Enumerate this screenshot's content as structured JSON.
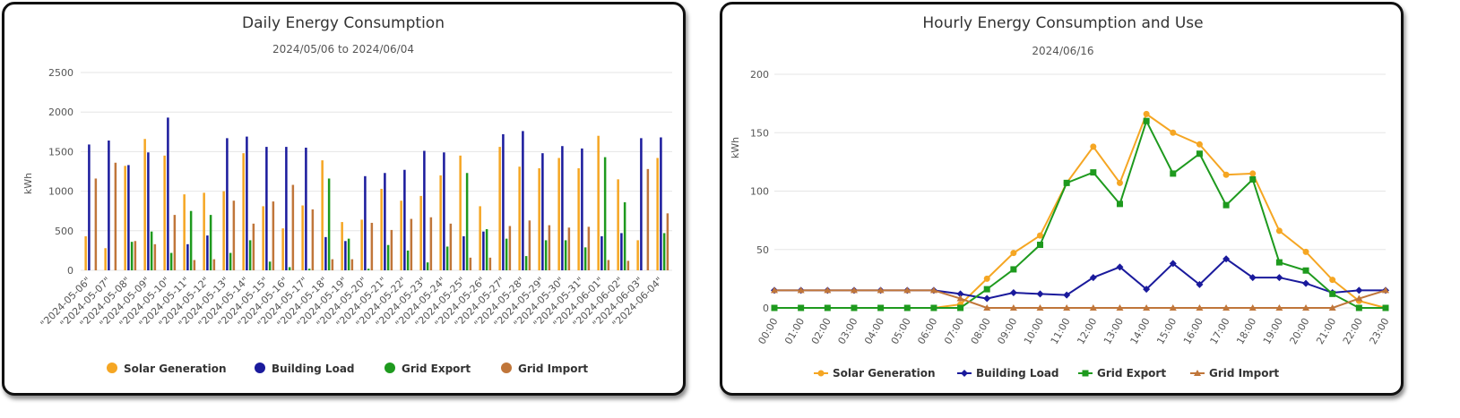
{
  "chart_data": [
    {
      "type": "bar",
      "title": "Daily Energy Consumption",
      "subtitle": "2024/05/06 to 2024/06/04",
      "xlabel": "",
      "ylabel": "kWh",
      "ylim": [
        0,
        2500
      ],
      "yticks": [
        0,
        500,
        1000,
        1500,
        2000,
        2500
      ],
      "grid": true,
      "legend": "bottom",
      "categories": [
        "\"2024-05-06\"",
        "\"2024-05-07\"",
        "\"2024-05-08\"",
        "\"2024-05-09\"",
        "\"2024-05-10\"",
        "\"2024-05-11\"",
        "\"2024-05-12\"",
        "\"2024-05-13\"",
        "\"2024-05-14\"",
        "\"2024-05-15\"",
        "\"2024-05-16\"",
        "\"2024-05-17\"",
        "\"2024-05-18\"",
        "\"2024-05-19\"",
        "\"2024-05-20\"",
        "\"2024-05-21\"",
        "\"2024-05-22\"",
        "\"2024-05-23\"",
        "\"2024-05-24\"",
        "\"2024-05-25\"",
        "\"2024-05-26\"",
        "\"2024-05-27\"",
        "\"2024-05-28\"",
        "\"2024-05-29\"",
        "\"2024-05-30\"",
        "\"2024-05-31\"",
        "\"2024-06-01\"",
        "\"2024-06-02\"",
        "\"2024-06-03\"",
        "\"2024-06-04\""
      ],
      "series": [
        {
          "name": "Solar Generation",
          "color": "#f5a623",
          "values": [
            430,
            280,
            1320,
            1660,
            1450,
            960,
            980,
            1000,
            1480,
            810,
            530,
            820,
            1390,
            610,
            640,
            1030,
            880,
            940,
            1200,
            1450,
            810,
            1560,
            1310,
            1290,
            1420,
            1290,
            1700,
            1150,
            380,
            1420
          ]
        },
        {
          "name": "Building Load",
          "color": "#1a1a9c",
          "values": [
            1590,
            1640,
            1330,
            1490,
            1930,
            330,
            440,
            1670,
            1690,
            1560,
            1560,
            1550,
            420,
            370,
            1190,
            1230,
            1270,
            1510,
            1490,
            430,
            490,
            1720,
            1760,
            1480,
            1570,
            1540,
            430,
            470,
            1670,
            1680
          ]
        },
        {
          "name": "Grid Export",
          "color": "#1e9a1e",
          "values": [
            0,
            0,
            360,
            490,
            220,
            750,
            700,
            220,
            380,
            110,
            40,
            20,
            1160,
            400,
            20,
            320,
            250,
            100,
            300,
            1230,
            520,
            400,
            180,
            380,
            380,
            290,
            1430,
            860,
            0,
            470
          ]
        },
        {
          "name": "Grid Import",
          "color": "#c0763a",
          "values": [
            1160,
            1360,
            370,
            330,
            700,
            130,
            140,
            880,
            590,
            870,
            1080,
            770,
            140,
            140,
            600,
            510,
            650,
            670,
            590,
            160,
            160,
            560,
            630,
            570,
            540,
            550,
            130,
            120,
            1280,
            720
          ]
        }
      ]
    },
    {
      "type": "line",
      "title": "Hourly Energy Consumption and Use",
      "subtitle": "2024/06/16",
      "xlabel": "",
      "ylabel": "kWh",
      "ylim": [
        0,
        200
      ],
      "yticks": [
        0,
        50,
        100,
        150,
        200
      ],
      "grid": true,
      "legend": "bottom",
      "x": [
        "00:00",
        "01:00",
        "02:00",
        "03:00",
        "04:00",
        "05:00",
        "06:00",
        "07:00",
        "08:00",
        "09:00",
        "10:00",
        "11:00",
        "12:00",
        "13:00",
        "14:00",
        "15:00",
        "16:00",
        "17:00",
        "18:00",
        "19:00",
        "20:00",
        "21:00",
        "22:00",
        "23:00"
      ],
      "series": [
        {
          "name": "Solar Generation",
          "color": "#f5a623",
          "marker": "circle",
          "values": [
            0,
            0,
            0,
            0,
            0,
            0,
            0,
            3,
            25,
            47,
            62,
            107,
            138,
            107,
            166,
            150,
            140,
            114,
            115,
            66,
            48,
            24,
            6,
            0
          ]
        },
        {
          "name": "Building Load",
          "color": "#1a1a9c",
          "marker": "diamond",
          "values": [
            15,
            15,
            15,
            15,
            15,
            15,
            15,
            12,
            8,
            13,
            12,
            11,
            26,
            35,
            16,
            38,
            20,
            42,
            26,
            26,
            21,
            13,
            15,
            15
          ]
        },
        {
          "name": "Grid Export",
          "color": "#1e9a1e",
          "marker": "square",
          "values": [
            0,
            0,
            0,
            0,
            0,
            0,
            0,
            0,
            16,
            33,
            54,
            107,
            116,
            89,
            160,
            115,
            132,
            88,
            110,
            39,
            32,
            12,
            0,
            0
          ]
        },
        {
          "name": "Grid Import",
          "color": "#c0763a",
          "marker": "triangle",
          "values": [
            15,
            15,
            15,
            15,
            15,
            15,
            15,
            8,
            0,
            0,
            0,
            0,
            0,
            0,
            0,
            0,
            0,
            0,
            0,
            0,
            0,
            0,
            8,
            15
          ]
        }
      ]
    }
  ]
}
